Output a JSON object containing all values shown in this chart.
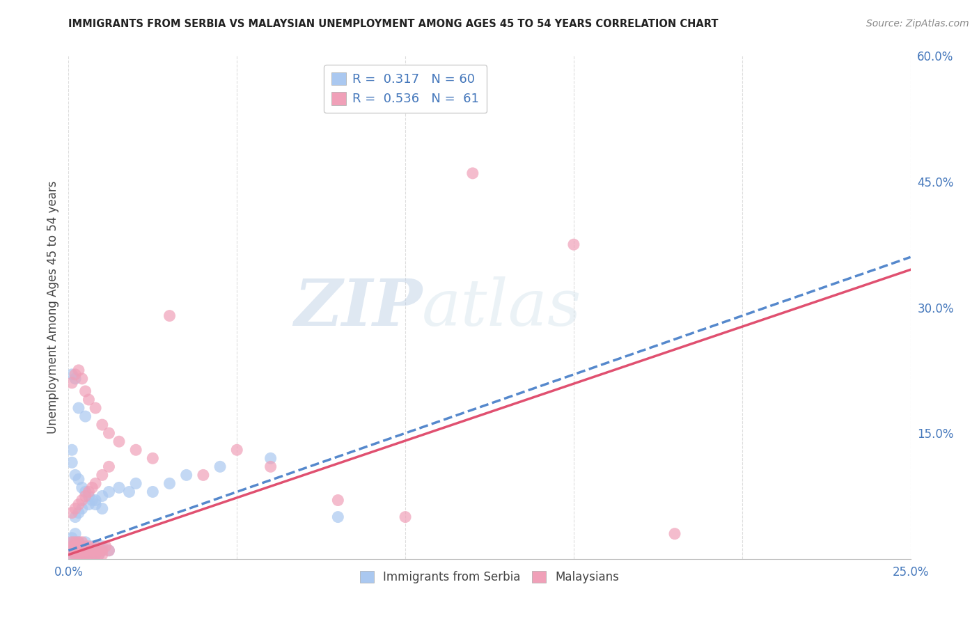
{
  "title": "IMMIGRANTS FROM SERBIA VS MALAYSIAN UNEMPLOYMENT AMONG AGES 45 TO 54 YEARS CORRELATION CHART",
  "source": "Source: ZipAtlas.com",
  "ylabel": "Unemployment Among Ages 45 to 54 years",
  "xlim": [
    0.0,
    0.25
  ],
  "ylim": [
    0.0,
    0.6
  ],
  "xticks": [
    0.0,
    0.05,
    0.1,
    0.15,
    0.2,
    0.25
  ],
  "yticks_right": [
    0.0,
    0.15,
    0.3,
    0.45,
    0.6
  ],
  "ytick_labels_right": [
    "",
    "15.0%",
    "30.0%",
    "45.0%",
    "60.0%"
  ],
  "xtick_labels": [
    "0.0%",
    "",
    "",
    "",
    "",
    "25.0%"
  ],
  "series1_name": "Immigrants from Serbia",
  "series2_name": "Malaysians",
  "series1_R": 0.317,
  "series1_N": 60,
  "series2_R": 0.536,
  "series2_N": 61,
  "series1_color": "#aac8f0",
  "series2_color": "#f0a0b8",
  "series1_line_color": "#5588cc",
  "series2_line_color": "#e05070",
  "watermark_zip": "ZIP",
  "watermark_atlas": "atlas",
  "background_color": "#ffffff",
  "grid_color": "#dddddd",
  "series1_x": [
    0.001,
    0.001,
    0.001,
    0.001,
    0.001,
    0.002,
    0.002,
    0.002,
    0.002,
    0.002,
    0.003,
    0.003,
    0.003,
    0.003,
    0.004,
    0.004,
    0.004,
    0.005,
    0.005,
    0.005,
    0.006,
    0.006,
    0.007,
    0.007,
    0.008,
    0.008,
    0.009,
    0.01,
    0.01,
    0.012,
    0.001,
    0.001,
    0.002,
    0.003,
    0.004,
    0.005,
    0.006,
    0.007,
    0.008,
    0.01,
    0.002,
    0.003,
    0.004,
    0.006,
    0.008,
    0.01,
    0.012,
    0.015,
    0.018,
    0.02,
    0.001,
    0.002,
    0.003,
    0.005,
    0.025,
    0.03,
    0.035,
    0.045,
    0.06,
    0.08
  ],
  "series1_y": [
    0.005,
    0.01,
    0.015,
    0.02,
    0.025,
    0.005,
    0.01,
    0.015,
    0.02,
    0.03,
    0.005,
    0.01,
    0.015,
    0.02,
    0.005,
    0.01,
    0.015,
    0.005,
    0.01,
    0.02,
    0.005,
    0.01,
    0.005,
    0.015,
    0.005,
    0.01,
    0.005,
    0.01,
    0.015,
    0.01,
    0.115,
    0.13,
    0.1,
    0.095,
    0.085,
    0.08,
    0.075,
    0.07,
    0.065,
    0.06,
    0.05,
    0.055,
    0.06,
    0.065,
    0.07,
    0.075,
    0.08,
    0.085,
    0.08,
    0.09,
    0.22,
    0.215,
    0.18,
    0.17,
    0.08,
    0.09,
    0.1,
    0.11,
    0.12,
    0.05
  ],
  "series2_x": [
    0.001,
    0.001,
    0.001,
    0.001,
    0.002,
    0.002,
    0.002,
    0.002,
    0.003,
    0.003,
    0.003,
    0.003,
    0.004,
    0.004,
    0.004,
    0.005,
    0.005,
    0.005,
    0.006,
    0.006,
    0.007,
    0.007,
    0.008,
    0.008,
    0.009,
    0.009,
    0.01,
    0.01,
    0.011,
    0.012,
    0.001,
    0.002,
    0.003,
    0.004,
    0.005,
    0.006,
    0.007,
    0.008,
    0.01,
    0.012,
    0.001,
    0.002,
    0.003,
    0.004,
    0.005,
    0.006,
    0.008,
    0.01,
    0.012,
    0.015,
    0.02,
    0.025,
    0.03,
    0.04,
    0.05,
    0.06,
    0.08,
    0.1,
    0.12,
    0.15,
    0.18
  ],
  "series2_y": [
    0.005,
    0.01,
    0.015,
    0.02,
    0.005,
    0.01,
    0.015,
    0.02,
    0.005,
    0.01,
    0.015,
    0.02,
    0.005,
    0.01,
    0.02,
    0.005,
    0.01,
    0.015,
    0.005,
    0.015,
    0.005,
    0.01,
    0.005,
    0.015,
    0.005,
    0.01,
    0.005,
    0.01,
    0.015,
    0.01,
    0.055,
    0.06,
    0.065,
    0.07,
    0.075,
    0.08,
    0.085,
    0.09,
    0.1,
    0.11,
    0.21,
    0.22,
    0.225,
    0.215,
    0.2,
    0.19,
    0.18,
    0.16,
    0.15,
    0.14,
    0.13,
    0.12,
    0.29,
    0.1,
    0.13,
    0.11,
    0.07,
    0.05,
    0.46,
    0.375,
    0.03
  ],
  "trend1_x0": 0.0,
  "trend1_y0": 0.01,
  "trend1_x1": 0.25,
  "trend1_y1": 0.36,
  "trend2_x0": 0.0,
  "trend2_y0": 0.005,
  "trend2_x1": 0.25,
  "trend2_y1": 0.345
}
